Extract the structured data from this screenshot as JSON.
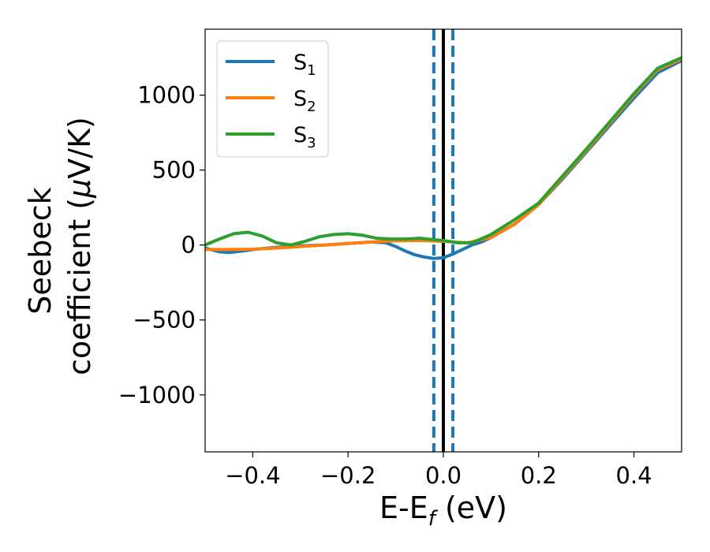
{
  "chart_data": {
    "type": "line",
    "xlabel": {
      "main": "E-E",
      "sub": "f",
      "rest": " (eV)"
    },
    "ylabel": {
      "line1": "Seebeck",
      "line2_pre": "coefficient  (",
      "mu": "μ",
      "line2_post": "V/K)"
    },
    "xlim": [
      -0.5,
      0.5
    ],
    "ylim": [
      -1380,
      1440
    ],
    "x_ticks": [
      -0.4,
      -0.2,
      0.0,
      0.2,
      0.4
    ],
    "x_tick_labels": [
      "−0.4",
      "−0.2",
      "0.0",
      "0.2",
      "0.4"
    ],
    "y_ticks": [
      -1000,
      -500,
      0,
      500,
      1000
    ],
    "y_tick_labels": [
      "−1000",
      "−500",
      "0",
      "500",
      "1000"
    ],
    "grid": false,
    "legend_position": "top-left",
    "series": [
      {
        "name": "S",
        "sub": "1",
        "color": "#1f77b4",
        "x": [
          -0.5,
          -0.47,
          -0.45,
          -0.42,
          -0.4,
          -0.35,
          -0.3,
          -0.25,
          -0.2,
          -0.15,
          -0.12,
          -0.1,
          -0.08,
          -0.06,
          -0.04,
          -0.02,
          0.0,
          0.02,
          0.04,
          0.06,
          0.08,
          0.1,
          0.15,
          0.2,
          0.25,
          0.3,
          0.35,
          0.4,
          0.45,
          0.5
        ],
        "y": [
          -20,
          -45,
          -50,
          -40,
          -30,
          -15,
          -5,
          0,
          10,
          20,
          15,
          -10,
          -40,
          -65,
          -80,
          -90,
          -85,
          -60,
          -30,
          0,
          20,
          50,
          140,
          270,
          440,
          620,
          800,
          980,
          1150,
          1230
        ]
      },
      {
        "name": "S",
        "sub": "2",
        "color": "#ff7f0e",
        "x": [
          -0.5,
          -0.45,
          -0.4,
          -0.35,
          -0.3,
          -0.25,
          -0.2,
          -0.15,
          -0.1,
          -0.05,
          0.0,
          0.05,
          0.1,
          0.15,
          0.2,
          0.25,
          0.3,
          0.35,
          0.4,
          0.45,
          0.5
        ],
        "y": [
          -30,
          -30,
          -28,
          -20,
          -10,
          0,
          10,
          20,
          28,
          30,
          25,
          15,
          50,
          140,
          270,
          450,
          630,
          815,
          1000,
          1170,
          1240
        ]
      },
      {
        "name": "S",
        "sub": "3",
        "color": "#2ca02c",
        "x": [
          -0.5,
          -0.47,
          -0.44,
          -0.41,
          -0.38,
          -0.35,
          -0.32,
          -0.29,
          -0.26,
          -0.23,
          -0.2,
          -0.17,
          -0.14,
          -0.11,
          -0.08,
          -0.05,
          -0.02,
          0.0,
          0.03,
          0.06,
          0.1,
          0.15,
          0.2,
          0.25,
          0.3,
          0.35,
          0.4,
          0.45,
          0.5
        ],
        "y": [
          0,
          40,
          75,
          85,
          60,
          15,
          0,
          25,
          55,
          70,
          75,
          65,
          45,
          40,
          40,
          45,
          35,
          30,
          15,
          15,
          70,
          170,
          280,
          460,
          640,
          825,
          1010,
          1180,
          1250
        ]
      }
    ],
    "vertical_lines": [
      {
        "x": -0.02,
        "color": "#1f77b4",
        "style": "dashed"
      },
      {
        "x": 0.0,
        "color": "#000000",
        "style": "solid"
      },
      {
        "x": 0.02,
        "color": "#1f77b4",
        "style": "dashed"
      }
    ]
  }
}
